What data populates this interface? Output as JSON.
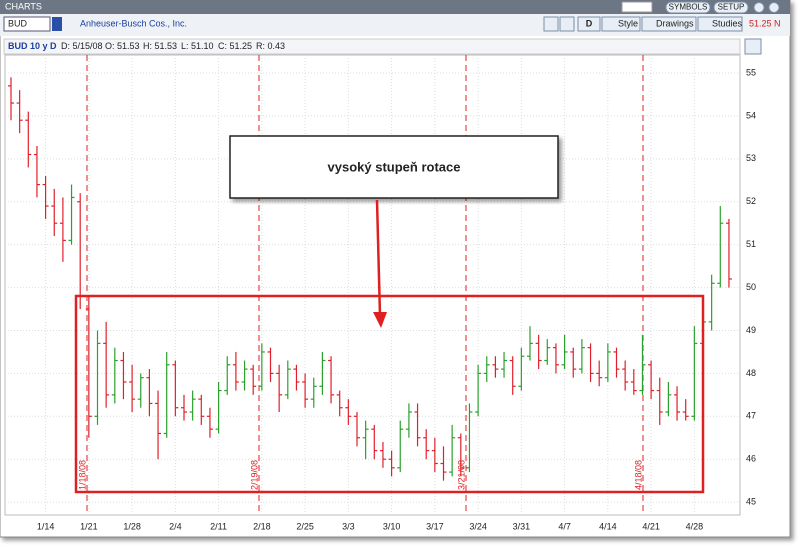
{
  "app": {
    "window_title": "CHARTS",
    "symbol": "BUD",
    "company": "Anheuser-Busch Cos., Inc.",
    "buttons": {
      "symbols": "SYMBOLS",
      "setup": "SETUP",
      "period": "D",
      "style": "Style",
      "drawings": "Drawings",
      "studies": "Studies"
    },
    "last_price": "51.25 N"
  },
  "info_bar": {
    "name": "BUD 10 y D",
    "date": "D: 5/15/08",
    "open": "O: 51.53",
    "high": "H: 51.53",
    "low": "L: 51.10",
    "close": "C: 51.25",
    "range": "R: 0.43"
  },
  "annotation": {
    "text": "vysoký stupeň rotace"
  },
  "events": [
    "1/18/08",
    "2/19/08",
    "3/21/08",
    "4/18/08"
  ],
  "chart_data": {
    "type": "ohlc",
    "up_color": "#2ca02c",
    "down_color": "#e0202a",
    "grid": true,
    "ylim": [
      44.7,
      55.42
    ],
    "yticks": [
      45,
      46,
      47,
      48,
      49,
      50,
      51,
      52,
      53,
      54,
      55
    ],
    "categories": [
      null,
      null,
      null,
      null,
      "1/14",
      null,
      null,
      null,
      null,
      "1/21",
      null,
      null,
      null,
      null,
      "1/28",
      null,
      null,
      null,
      null,
      "2/4",
      null,
      null,
      null,
      null,
      "2/11",
      null,
      null,
      null,
      null,
      "2/18",
      null,
      null,
      null,
      null,
      "2/25",
      null,
      null,
      null,
      null,
      "3/3",
      null,
      null,
      null,
      null,
      "3/10",
      null,
      null,
      null,
      null,
      "3/17",
      null,
      null,
      null,
      null,
      "3/24",
      null,
      null,
      null,
      null,
      "3/31",
      null,
      null,
      null,
      null,
      "4/7",
      null,
      null,
      null,
      null,
      "4/14",
      null,
      null,
      null,
      null,
      "4/21",
      null,
      null,
      null,
      null,
      "4/28",
      null,
      null,
      null,
      null
    ],
    "series": [
      {
        "name": "BUD",
        "values": [
          [
            54.7,
            54.9,
            53.9,
            54.3
          ],
          [
            54.3,
            54.6,
            53.6,
            53.9
          ],
          [
            53.9,
            54.1,
            52.8,
            53.1
          ],
          [
            53.1,
            53.3,
            52.1,
            52.4
          ],
          [
            52.4,
            52.6,
            51.6,
            51.9
          ],
          [
            51.9,
            52.3,
            51.2,
            51.5
          ],
          [
            51.5,
            52.1,
            50.6,
            51.1
          ],
          [
            51.1,
            52.4,
            51.0,
            52.1
          ],
          [
            52.0,
            52.2,
            49.5,
            49.8
          ],
          [
            49.5,
            49.8,
            46.5,
            47.0
          ],
          [
            47.0,
            49.0,
            46.8,
            48.7
          ],
          [
            48.7,
            49.2,
            47.2,
            47.5
          ],
          [
            47.5,
            48.6,
            47.3,
            48.3
          ],
          [
            48.3,
            48.5,
            47.4,
            47.8
          ],
          [
            47.8,
            48.2,
            47.1,
            47.4
          ],
          [
            47.4,
            48.0,
            47.2,
            47.9
          ],
          [
            47.9,
            48.1,
            47.0,
            47.3
          ],
          [
            47.3,
            47.6,
            46.0,
            46.6
          ],
          [
            46.6,
            48.5,
            46.5,
            48.2
          ],
          [
            48.2,
            48.3,
            47.0,
            47.2
          ],
          [
            47.2,
            47.5,
            46.9,
            47.1
          ],
          [
            47.1,
            47.6,
            46.9,
            47.4
          ],
          [
            47.4,
            47.5,
            46.8,
            47.0
          ],
          [
            47.0,
            47.2,
            46.5,
            46.7
          ],
          [
            46.7,
            47.8,
            46.6,
            47.6
          ],
          [
            47.6,
            48.4,
            47.5,
            48.2
          ],
          [
            48.2,
            48.5,
            47.6,
            47.8
          ],
          [
            47.8,
            48.3,
            47.6,
            48.1
          ],
          [
            48.1,
            48.2,
            47.5,
            47.7
          ],
          [
            47.7,
            48.7,
            47.6,
            48.5
          ],
          [
            48.5,
            48.6,
            47.8,
            48.0
          ],
          [
            48.0,
            48.2,
            47.1,
            47.5
          ],
          [
            47.5,
            48.3,
            47.4,
            48.1
          ],
          [
            48.1,
            48.2,
            47.6,
            47.8
          ],
          [
            47.8,
            48.0,
            47.2,
            47.4
          ],
          [
            47.4,
            47.9,
            47.2,
            47.7
          ],
          [
            47.7,
            48.5,
            47.5,
            48.3
          ],
          [
            48.3,
            48.4,
            47.3,
            47.5
          ],
          [
            47.5,
            47.6,
            47.0,
            47.2
          ],
          [
            47.2,
            47.4,
            46.8,
            47.0
          ],
          [
            47.0,
            47.1,
            46.3,
            46.5
          ],
          [
            46.5,
            46.9,
            46.0,
            46.7
          ],
          [
            46.7,
            46.8,
            46.0,
            46.2
          ],
          [
            46.2,
            46.4,
            45.8,
            46.0
          ],
          [
            46.0,
            46.2,
            45.6,
            45.8
          ],
          [
            45.8,
            46.9,
            45.7,
            46.7
          ],
          [
            46.7,
            47.3,
            46.5,
            47.1
          ],
          [
            47.1,
            47.3,
            46.3,
            46.5
          ],
          [
            46.5,
            46.7,
            46.0,
            46.2
          ],
          [
            46.2,
            46.5,
            45.7,
            45.9
          ],
          [
            45.9,
            46.3,
            45.5,
            45.7
          ],
          [
            45.7,
            46.8,
            45.6,
            46.5
          ],
          [
            46.5,
            46.6,
            45.6,
            45.8
          ],
          [
            45.8,
            47.3,
            45.7,
            47.1
          ],
          [
            47.1,
            48.2,
            47.0,
            48.0
          ],
          [
            48.0,
            48.4,
            47.8,
            48.2
          ],
          [
            48.2,
            48.4,
            47.9,
            48.1
          ],
          [
            48.1,
            48.5,
            47.9,
            48.3
          ],
          [
            48.3,
            48.4,
            47.5,
            47.7
          ],
          [
            47.7,
            48.6,
            47.6,
            48.4
          ],
          [
            48.4,
            49.1,
            48.3,
            48.7
          ],
          [
            48.7,
            48.9,
            48.1,
            48.3
          ],
          [
            48.3,
            48.8,
            48.2,
            48.6
          ],
          [
            48.6,
            48.7,
            48.0,
            48.2
          ],
          [
            48.2,
            48.9,
            48.1,
            48.5
          ],
          [
            48.5,
            48.6,
            47.9,
            48.1
          ],
          [
            48.1,
            48.8,
            48.0,
            48.6
          ],
          [
            48.6,
            48.7,
            47.8,
            48.0
          ],
          [
            48.0,
            48.3,
            47.7,
            47.9
          ],
          [
            47.9,
            48.7,
            47.8,
            48.5
          ],
          [
            48.5,
            48.6,
            47.9,
            48.1
          ],
          [
            48.1,
            48.3,
            47.6,
            47.8
          ],
          [
            47.8,
            48.1,
            47.5,
            47.6
          ],
          [
            47.6,
            48.9,
            47.5,
            48.2
          ],
          [
            48.2,
            48.3,
            47.4,
            47.6
          ],
          [
            47.6,
            47.9,
            46.8,
            47.1
          ],
          [
            47.1,
            47.8,
            47.0,
            47.5
          ],
          [
            47.5,
            47.7,
            46.9,
            47.1
          ],
          [
            47.1,
            47.4,
            46.9,
            47.0
          ],
          [
            47.0,
            49.1,
            46.9,
            48.7
          ],
          [
            48.7,
            49.6,
            48.5,
            49.2
          ],
          [
            49.2,
            50.3,
            49.0,
            50.1
          ],
          [
            50.1,
            51.9,
            50.0,
            51.5
          ],
          [
            51.5,
            51.6,
            50.0,
            50.2
          ]
        ]
      }
    ]
  }
}
